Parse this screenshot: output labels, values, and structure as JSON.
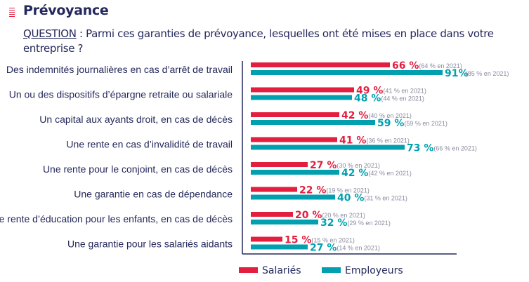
{
  "header": {
    "title": "Prévoyance",
    "question_label": "QUESTION",
    "question_text": " : Parmi ces garanties de prévoyance, lesquelles ont été mises en place dans votre entreprise ?"
  },
  "chart_data": {
    "type": "bar",
    "orientation": "horizontal",
    "title": "Prévoyance",
    "categories": [
      "Des indemnités journalières en cas d’arrêt de travail",
      "Un ou des dispositifs d’épargne retraite ou salariale",
      "Un capital aux ayants droit, en cas de décès",
      "Une rente en cas d’invalidité de travail",
      "Une rente pour le conjoint, en cas de décès",
      "Une garantie en cas de dépendance",
      "Une rente d’éducation pour les enfants, en cas de décès",
      "Une garantie pour les salariés aidants"
    ],
    "series": [
      {
        "name": "Salariés",
        "color": "#e31e3f",
        "values": [
          66,
          49,
          42,
          41,
          27,
          22,
          20,
          15
        ],
        "value_labels": [
          "66 %",
          "49 %",
          "42 %",
          "41 %",
          "27 %",
          "22 %",
          "20 %",
          "15 %"
        ],
        "values_2021": [
          64,
          41,
          40,
          36,
          30,
          19,
          20,
          15
        ],
        "labels_2021": [
          "(64 % en 2021)",
          "(41 % en 2021)",
          "(40 % en 2021)",
          "(36 % en 2021)",
          "(30 % en 2021)",
          "(19 % en 2021)",
          "(20 % en 2021)",
          "(15 % en 2021)"
        ]
      },
      {
        "name": "Employeurs",
        "color": "#00a0b0",
        "values": [
          91,
          48,
          59,
          73,
          42,
          40,
          32,
          27
        ],
        "value_labels": [
          "91%",
          "48 %",
          "59 %",
          "73 %",
          "42 %",
          "40 %",
          "32 %",
          "27 %"
        ],
        "values_2021": [
          85,
          44,
          59,
          66,
          42,
          31,
          29,
          14
        ],
        "labels_2021": [
          "(85 % en 2021)",
          "(44 % en 2021)",
          "(59 % en 2021)",
          "(66 % en 2021)",
          "(42 % en 2021)",
          "(31 % en 2021)",
          "(29 % en 2021)",
          "(14 % en 2021)"
        ]
      }
    ],
    "xlim": [
      0,
      100
    ],
    "xlabel": "",
    "ylabel": "",
    "grid": false,
    "axis_color": "#24285b",
    "legend": {
      "placement": "bottom",
      "entries": [
        "Salariés",
        "Employeurs"
      ]
    }
  }
}
